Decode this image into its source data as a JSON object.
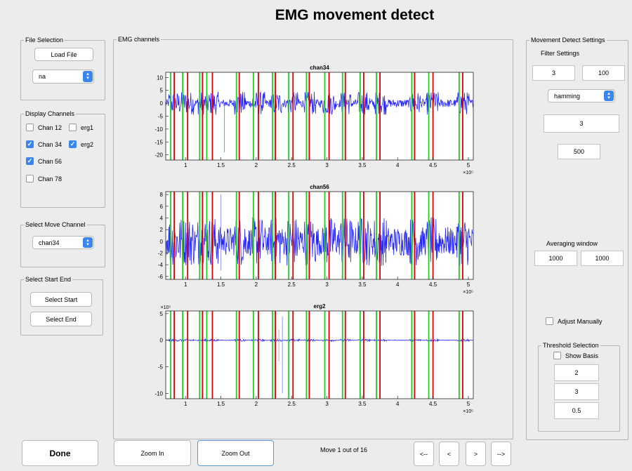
{
  "title": "EMG movement detect",
  "file_selection": {
    "label": "File Selection",
    "load_button": "Load File",
    "file_popup": "na"
  },
  "display_channels": {
    "label": "Display Channels",
    "items": [
      {
        "label": "Chan 12",
        "checked": false
      },
      {
        "label": "erg1",
        "checked": false
      },
      {
        "label": "Chan 34",
        "checked": true
      },
      {
        "label": "erg2",
        "checked": true
      },
      {
        "label": "Chan 56",
        "checked": true
      },
      {
        "label": "Chan 78",
        "checked": false
      }
    ]
  },
  "move_channel": {
    "label": "Select Move Channel",
    "value": "chan34"
  },
  "start_end": {
    "label": "Select Start End",
    "start_button": "Select Start",
    "end_button": "Select End"
  },
  "emg_panel": {
    "label": "EMG channels"
  },
  "settings": {
    "label": "Movement Detect Settings",
    "filter_label": "Filter Settings",
    "filter_low": "3",
    "filter_high": "100",
    "window_type": "hamming",
    "filter_order": "3",
    "filter_len": "500",
    "avg_label": "Averaging window",
    "avg_1": "1000",
    "avg_2": "1000",
    "adjust_label": "Adjust Manually",
    "threshold_label": "Threshold Selection",
    "show_basis_label": "Show Basis",
    "thr_1": "2",
    "thr_2": "3",
    "thr_3": "0.5"
  },
  "bottom": {
    "done": "Done",
    "zoom_in": "Zoom In",
    "zoom_out": "Zoom Out",
    "status": "Move 1 out of 16",
    "first": "<--",
    "prev": "<",
    "next": ">",
    "last": "-->"
  },
  "colors": {
    "signal": "#0000ff",
    "start_marker": "#22cc22",
    "end_marker": "#dd0000",
    "accent": "#3a86f0"
  },
  "chart_data": [
    {
      "type": "line",
      "title": "chan34",
      "xlim": [
        72000,
        507000
      ],
      "ylim": [
        -22,
        12
      ],
      "xticks": [
        100000,
        150000,
        200000,
        250000,
        300000,
        350000,
        400000,
        450000,
        500000
      ],
      "xtick_labels": [
        "1",
        "1.5",
        "2",
        "2.5",
        "3",
        "3.5",
        "4",
        "4.5",
        "5"
      ],
      "x_exponent": "×10⁵",
      "yticks": [
        10,
        5,
        0,
        -5,
        -10,
        -15,
        -20
      ],
      "noise_amplitude": 1.6,
      "burst_amplitude": 4.5
    },
    {
      "type": "line",
      "title": "chan56",
      "xlim": [
        72000,
        507000
      ],
      "ylim": [
        -6.5,
        8.5
      ],
      "xticks": [
        100000,
        150000,
        200000,
        250000,
        300000,
        350000,
        400000,
        450000,
        500000
      ],
      "xtick_labels": [
        "1",
        "1.5",
        "2",
        "2.5",
        "3",
        "3.5",
        "4",
        "4.5",
        "5"
      ],
      "x_exponent": "×10⁵",
      "yticks": [
        8,
        6,
        4,
        2,
        0,
        -2,
        -4,
        -6
      ],
      "noise_amplitude": 2.5,
      "burst_amplitude": 4.2
    },
    {
      "type": "line",
      "title": "erg2",
      "xlim": [
        72000,
        507000
      ],
      "ylim": [
        -11,
        5.5
      ],
      "xticks": [
        100000,
        150000,
        200000,
        250000,
        300000,
        350000,
        400000,
        450000,
        500000
      ],
      "xtick_labels": [
        "1",
        "1.5",
        "2",
        "2.5",
        "3",
        "3.5",
        "4",
        "4.5",
        "5"
      ],
      "x_exponent": "×10⁵",
      "y_exponent": "×10⁵",
      "yticks": [
        5,
        0,
        -5,
        -10
      ],
      "noise_amplitude": 0.05,
      "burst_amplitude": 0.2
    }
  ],
  "movement_markers": {
    "starts": [
      79000,
      96000,
      120000,
      130000,
      172000,
      196000,
      223000,
      246000,
      271000,
      297000,
      322000,
      347000,
      370000,
      420000,
      444000,
      487000
    ],
    "ends": [
      84000,
      103000,
      124000,
      138000,
      176000,
      203000,
      227000,
      252000,
      275000,
      303000,
      326000,
      352000,
      375000,
      424000,
      450000,
      492000
    ]
  }
}
